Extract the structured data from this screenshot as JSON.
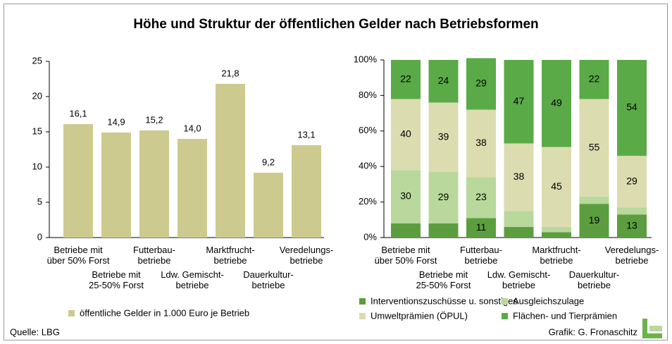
{
  "title": "Höhe und Struktur der öffentlichen Gelder nach Betriebsformen",
  "source": "Quelle: LBG",
  "credit": "Grafik: G. Fronaschitz",
  "chart_data": [
    {
      "type": "bar",
      "categories": [
        "Betriebe mit\nüber 50% Forst",
        "Betriebe mit\n25-50% Forst",
        "Futterbau-\nbetriebe",
        "Ldw. Gemischt-\nbetriebe",
        "Marktfrucht-\nbetriebe",
        "Dauerkultur-\nbetriebe",
        "Veredelungs-\nbetriebe"
      ],
      "series": [
        {
          "name": "öffentliche Gelder in 1.000 Euro je Betrieb",
          "color": "#cdca8f",
          "values": [
            16.1,
            14.9,
            15.2,
            14.0,
            21.8,
            9.2,
            13.1
          ],
          "value_labels": [
            "16,1",
            "14,9",
            "15,2",
            "14,0",
            "21,8",
            "9,2",
            "13,1"
          ]
        }
      ],
      "ylim": [
        0,
        25
      ],
      "yticks": [
        0,
        5,
        10,
        15,
        20,
        25
      ]
    },
    {
      "type": "stacked_bar",
      "categories": [
        "Betriebe mit\nüber 50% Forst",
        "Betriebe mit\n25-50% Forst",
        "Futterbau-\nbetriebe",
        "Ldw. Gemischt-\nbetriebe",
        "Marktfrucht-\nbetriebe",
        "Dauerkultur-\nbetriebe",
        "Veredelungs-\nbetriebe"
      ],
      "series": [
        {
          "name": "Interventionszuschüsse u. sonstiges",
          "color": "#5c9e3f",
          "values": [
            8,
            8,
            11,
            6,
            3,
            19,
            13
          ],
          "value_labels": [
            null,
            null,
            "11",
            null,
            null,
            "19",
            "13"
          ]
        },
        {
          "name": "Ausgleichszulage",
          "color": "#b9d89b",
          "values": [
            30,
            29,
            23,
            9,
            3,
            4,
            4
          ],
          "value_labels": [
            "30",
            "29",
            "23",
            null,
            null,
            null,
            null
          ]
        },
        {
          "name": "Umweltprämien (ÖPUL)",
          "color": "#dcdcb1",
          "values": [
            40,
            39,
            38,
            38,
            45,
            55,
            29
          ],
          "value_labels": [
            "40",
            "39",
            "38",
            "38",
            "45",
            "55",
            "29"
          ]
        },
        {
          "name": "Flächen- und Tierprämien",
          "color": "#5aaa47",
          "values": [
            22,
            24,
            29,
            47,
            49,
            22,
            54
          ],
          "value_labels": [
            "22",
            "24",
            "29",
            "47",
            "49",
            "22",
            "54"
          ]
        }
      ],
      "ylim": [
        0,
        100
      ],
      "yticks": [
        {
          "value": 0,
          "label": "0%"
        },
        {
          "value": 20,
          "label": "20%"
        },
        {
          "value": 40,
          "label": "40%"
        },
        {
          "value": 60,
          "label": "60%"
        },
        {
          "value": 80,
          "label": "80%"
        },
        {
          "value": 100,
          "label": "100%"
        }
      ]
    }
  ]
}
